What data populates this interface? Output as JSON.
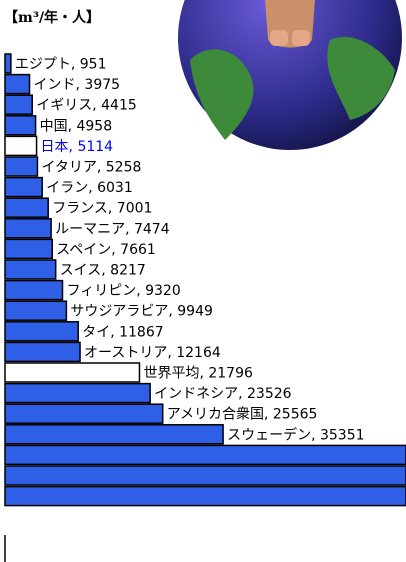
{
  "chart_data": {
    "type": "bar",
    "orientation": "horizontal",
    "title": "【m³/年・人】",
    "values": [
      951,
      3975,
      4415,
      4958,
      5114,
      5258,
      6031,
      7001,
      7474,
      7661,
      8217,
      9320,
      9949,
      11867,
      12164,
      21796,
      23526,
      25565,
      35351,
      65000,
      65000,
      65000
    ],
    "value_labels": [
      "エジプト, 951",
      "インド, 3975",
      "イギリス, 4415",
      "中国, 4958",
      "日本, 5114",
      "イタリア, 5258",
      "イラン, 6031",
      "フランス, 7001",
      "ルーマニア, 7474",
      "スペイン, 7661",
      "スイス, 8217",
      "フィリピン, 9320",
      "サウジアラビア, 9949",
      "タイ, 11867",
      "オーストリア, 12164",
      "世界平均, 21796",
      "インドネシア, 23526",
      "アメリカ合衆国, 25565",
      "スウェーデン, 35351",
      null,
      null,
      null
    ],
    "colors": [
      "#2f5fe6",
      "#2f5fe6",
      "#2f5fe6",
      "#2f5fe6",
      "#ffffff",
      "#2f5fe6",
      "#2f5fe6",
      "#2f5fe6",
      "#2f5fe6",
      "#2f5fe6",
      "#2f5fe6",
      "#2f5fe6",
      "#2f5fe6",
      "#2f5fe6",
      "#2f5fe6",
      "#ffffff",
      "#2f5fe6",
      "#2f5fe6",
      "#2f5fe6",
      "#2f5fe6",
      "#2f5fe6",
      "#2f5fe6"
    ],
    "label_colors": [
      "#000000",
      "#000000",
      "#000000",
      "#000000",
      "#0000ff",
      "#000000",
      "#000000",
      "#000000",
      "#000000",
      "#000000",
      "#000000",
      "#000000",
      "#000000",
      "#000000",
      "#000000",
      "#000000",
      "#000000",
      "#000000",
      "#000000",
      null,
      null,
      null
    ],
    "xlim": [
      0,
      65000
    ]
  }
}
